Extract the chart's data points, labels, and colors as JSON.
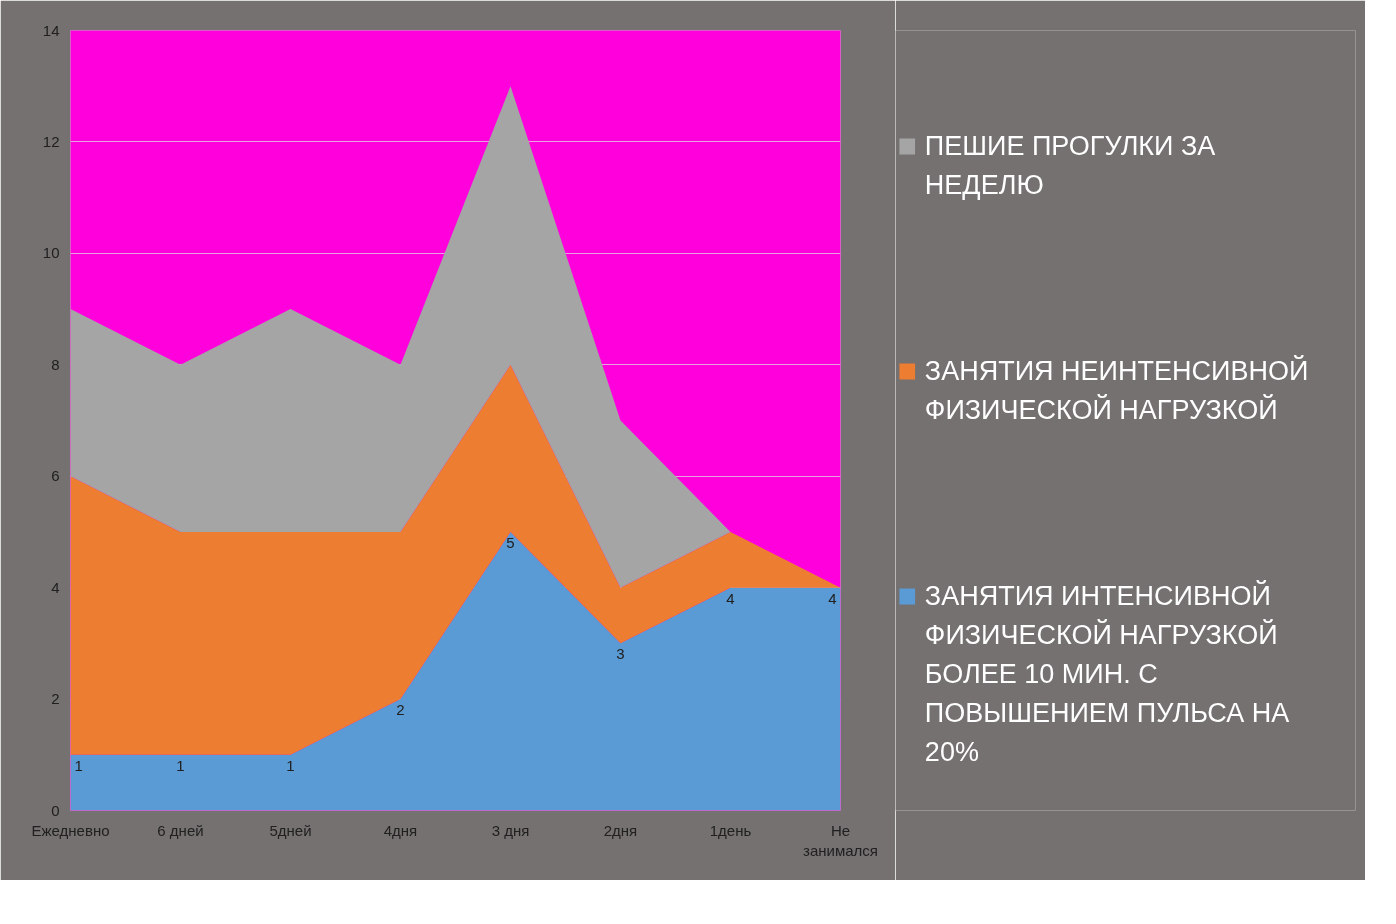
{
  "chart_data": {
    "type": "area",
    "stacked": true,
    "categories": [
      "Ежедневно",
      "6 дней",
      "5дней",
      "4дня",
      "3 дня",
      "2дня",
      "1день",
      "Не занимался"
    ],
    "series": [
      {
        "name": "ЗАНЯТИЯ ИНТЕНСИВНОЙ ФИЗИЧЕСКОЙ НАГРУЗКОЙ БОЛЕЕ 10 МИН. С ПОВЫШЕНИЕМ ПУЛЬСА НА 20%",
        "color": "#5b9bd5",
        "values": [
          1,
          1,
          1,
          2,
          5,
          3,
          4,
          4
        ],
        "value_labels": [
          "1",
          "1",
          "1",
          "2",
          "5",
          "3",
          "4",
          "4"
        ]
      },
      {
        "name": "ЗАНЯТИЯ НЕИНТЕНСИВНОЙ ФИЗИЧЕСКОЙ НАГРУЗКОЙ",
        "color": "#ed7d31",
        "values": [
          5,
          4,
          4,
          3,
          3,
          1,
          1,
          0
        ]
      },
      {
        "name": "ПЕШИЕ ПРОГУЛКИ ЗА НЕДЕЛЮ",
        "color": "#a5a5a5",
        "values": [
          3,
          3,
          4,
          3,
          5,
          3,
          0,
          0
        ]
      }
    ],
    "ylim": [
      0,
      14
    ],
    "yticks": [
      0,
      2,
      4,
      6,
      8,
      10,
      12,
      14
    ],
    "grid": "y",
    "legend": "right"
  }
}
